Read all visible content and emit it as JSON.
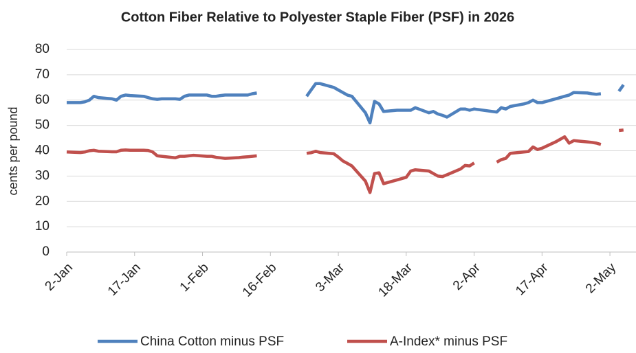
{
  "chart_data": {
    "type": "line",
    "title": "Cotton Fiber Relative to Polyester Staple Fiber (PSF) in 2026",
    "y_label": "cents per pound",
    "x": [
      "2-Jan",
      "5-Jan",
      "6-Jan",
      "7-Jan",
      "8-Jan",
      "9-Jan",
      "12-Jan",
      "13-Jan",
      "14-Jan",
      "15-Jan",
      "16-Jan",
      "19-Jan",
      "20-Jan",
      "21-Jan",
      "22-Jan",
      "23-Jan",
      "26-Jan",
      "27-Jan",
      "28-Jan",
      "29-Jan",
      "30-Jan",
      "2-Feb",
      "3-Feb",
      "4-Feb",
      "5-Feb",
      "6-Feb",
      "9-Feb",
      "10-Feb",
      "11-Feb",
      "12-Feb",
      "13-Feb",
      "16-Feb",
      "24-Feb",
      "25-Feb",
      "26-Feb",
      "27-Feb",
      "2-Mar",
      "3-Mar",
      "4-Mar",
      "5-Mar",
      "6-Mar",
      "9-Mar",
      "10-Mar",
      "11-Mar",
      "12-Mar",
      "13-Mar",
      "16-Mar",
      "17-Mar",
      "18-Mar",
      "19-Mar",
      "20-Mar",
      "23-Mar",
      "24-Mar",
      "25-Mar",
      "26-Mar",
      "27-Mar",
      "30-Mar",
      "31-Mar",
      "1-Apr",
      "2-Apr",
      "6-Apr",
      "7-Apr",
      "8-Apr",
      "9-Apr",
      "10-Apr",
      "13-Apr",
      "14-Apr",
      "15-Apr",
      "16-Apr",
      "17-Apr",
      "20-Apr",
      "21-Apr",
      "22-Apr",
      "23-Apr",
      "24-Apr",
      "27-Apr",
      "28-Apr",
      "29-Apr",
      "30-Apr",
      "1-May",
      "4-May",
      "5-May"
    ],
    "series": [
      {
        "name": "China Cotton minus PSF",
        "color": "#4f81bd",
        "values": [
          59,
          59,
          59.3,
          60,
          61.5,
          61,
          60.5,
          60,
          61.5,
          62,
          61.8,
          61.5,
          61,
          60.5,
          60.3,
          60.5,
          60.5,
          60.3,
          61.5,
          62,
          62,
          62,
          61.5,
          61.5,
          61.8,
          62,
          62,
          62,
          62,
          62.5,
          62.8,
          null,
          61.5,
          64,
          66.5,
          66.5,
          65,
          64,
          63,
          62,
          61.5,
          55,
          51,
          59.5,
          58.5,
          55.5,
          56,
          56,
          56,
          56,
          57,
          55,
          55.5,
          54.5,
          54,
          53.3,
          56.5,
          56.5,
          56,
          56.5,
          55.5,
          55.3,
          57,
          56.5,
          57.5,
          58.5,
          59,
          60,
          59,
          59,
          60.5,
          61,
          61.5,
          62,
          63,
          62.8,
          62.5,
          62.3,
          62.5,
          null,
          63.5,
          66
        ]
      },
      {
        "name": "A-Index* minus PSF",
        "color": "#c0504d",
        "values": [
          39.5,
          39.3,
          39.5,
          40,
          40.2,
          39.8,
          39.6,
          39.6,
          40.2,
          40.3,
          40.2,
          40.2,
          40.1,
          39.5,
          38,
          37.8,
          37.2,
          37.8,
          37.8,
          38,
          38.2,
          37.8,
          37.8,
          37.4,
          37.2,
          37,
          37.3,
          37.5,
          37.6,
          37.8,
          38,
          null,
          39,
          39.2,
          39.8,
          39.3,
          38.8,
          37.5,
          36,
          35,
          34,
          28,
          23.5,
          31,
          31.3,
          27,
          28.5,
          29,
          29.5,
          32,
          32.5,
          32,
          31,
          30,
          29.8,
          30.5,
          32.8,
          34.2,
          34,
          35.2,
          null,
          35.5,
          36.5,
          37,
          39,
          39.5,
          39.7,
          41.5,
          40.5,
          41,
          43.5,
          44.5,
          45.5,
          43,
          44,
          43.5,
          43.3,
          43,
          42.5,
          null,
          48,
          48.2
        ]
      }
    ],
    "xlim": [
      "2-Jan",
      "7-May"
    ],
    "xticks": [
      "2-Jan",
      "17-Jan",
      "1-Feb",
      "16-Feb",
      "3-Mar",
      "18-Mar",
      "2-Apr",
      "17-Apr",
      "2-May"
    ],
    "ylim": [
      0,
      80
    ],
    "yticks": [
      0,
      10,
      20,
      30,
      40,
      50,
      60,
      70,
      80
    ],
    "grid": true,
    "legend": "bottom"
  }
}
